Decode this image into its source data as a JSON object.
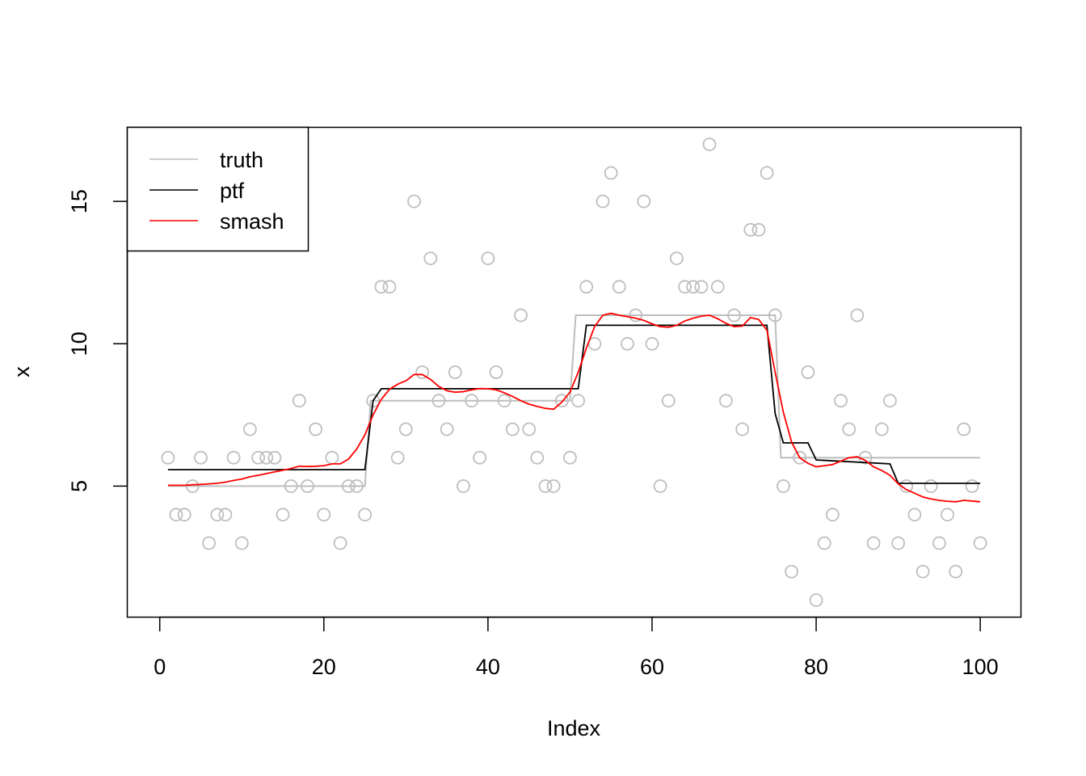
{
  "chart_data": {
    "type": "scatter",
    "title": "",
    "xlabel": "Index",
    "ylabel": "x",
    "xlim": [
      -3.96,
      104.96
    ],
    "ylim": [
      0.4,
      17.6
    ],
    "x_ticks": [
      0,
      20,
      40,
      60,
      80,
      100
    ],
    "y_ticks": [
      5,
      10,
      15
    ],
    "grid": false,
    "legend": {
      "placement": "top-left",
      "entries": [
        {
          "label": "truth",
          "color": "#BEBEBE"
        },
        {
          "label": "ptf",
          "color": "#000000"
        },
        {
          "label": "smash",
          "color": "#FF0000"
        }
      ]
    },
    "points": {
      "name": "x",
      "color": "#BEBEBE",
      "marker": "open-circle",
      "x": [
        1,
        2,
        3,
        4,
        5,
        6,
        7,
        8,
        9,
        10,
        11,
        12,
        13,
        14,
        15,
        16,
        17,
        18,
        19,
        20,
        21,
        22,
        23,
        24,
        25,
        26,
        27,
        28,
        29,
        30,
        31,
        32,
        33,
        34,
        35,
        36,
        37,
        38,
        39,
        40,
        41,
        42,
        43,
        44,
        45,
        46,
        47,
        48,
        49,
        50,
        51,
        52,
        53,
        54,
        55,
        56,
        57,
        58,
        59,
        60,
        61,
        62,
        63,
        64,
        65,
        66,
        67,
        68,
        69,
        70,
        71,
        72,
        73,
        74,
        75,
        76,
        77,
        78,
        79,
        80,
        81,
        82,
        83,
        84,
        85,
        86,
        87,
        88,
        89,
        90,
        91,
        92,
        93,
        94,
        95,
        96,
        97,
        98,
        99,
        100
      ],
      "y": [
        6,
        4,
        4,
        5,
        6,
        3,
        4,
        4,
        6,
        3,
        7,
        6,
        6,
        6,
        4,
        5,
        8,
        5,
        7,
        4,
        6,
        3,
        5,
        5,
        4,
        8,
        12,
        12,
        6,
        7,
        15,
        9,
        13,
        8,
        7,
        9,
        5,
        8,
        6,
        13,
        9,
        8,
        7,
        11,
        7,
        6,
        5,
        5,
        8,
        6,
        8,
        12,
        10,
        15,
        16,
        12,
        10,
        11,
        15,
        10,
        5,
        8,
        13,
        12,
        12,
        12,
        17,
        12,
        8,
        11,
        7,
        14,
        14,
        16,
        11,
        5,
        2,
        6,
        9,
        1,
        3,
        4,
        8,
        7,
        11,
        6,
        3,
        7,
        8,
        3,
        5,
        4,
        2,
        5,
        3,
        4,
        2,
        7,
        5,
        3
      ]
    },
    "series": [
      {
        "name": "truth",
        "color": "#BEBEBE",
        "x": [
          1,
          25,
          25.7,
          50,
          50.7,
          75,
          75.7,
          100
        ],
        "y": [
          5,
          5,
          8,
          8,
          11,
          11,
          6,
          6
        ]
      },
      {
        "name": "ptf",
        "color": "#000000",
        "x": [
          1,
          25,
          26,
          27,
          51,
          52,
          74,
          75,
          76,
          79,
          80,
          89,
          90,
          100
        ],
        "y": [
          5.58,
          5.58,
          8.0,
          8.42,
          8.42,
          10.65,
          10.65,
          7.55,
          6.52,
          6.52,
          5.92,
          5.78,
          5.1,
          5.1
        ],
        "interpolation": "linear"
      },
      {
        "name": "smash",
        "color": "#FF0000",
        "x": [
          1,
          2,
          3,
          4,
          5,
          6,
          7,
          8,
          9,
          10,
          11,
          12,
          13,
          14,
          15,
          16,
          17,
          18,
          19,
          20,
          21,
          22,
          23,
          24,
          25,
          26,
          27,
          28,
          29,
          30,
          31,
          32,
          33,
          34,
          35,
          36,
          37,
          38,
          39,
          40,
          41,
          42,
          43,
          44,
          45,
          46,
          47,
          48,
          49,
          50,
          51,
          52,
          53,
          54,
          55,
          56,
          57,
          58,
          59,
          60,
          61,
          62,
          63,
          64,
          65,
          66,
          67,
          68,
          69,
          70,
          71,
          72,
          73,
          74,
          75,
          76,
          77,
          78,
          79,
          80,
          81,
          82,
          83,
          84,
          85,
          86,
          87,
          88,
          89,
          90,
          91,
          92,
          93,
          94,
          95,
          96,
          97,
          98,
          99,
          100
        ],
        "y": [
          5.03,
          5.03,
          5.03,
          5.05,
          5.06,
          5.08,
          5.1,
          5.14,
          5.2,
          5.25,
          5.33,
          5.38,
          5.44,
          5.5,
          5.56,
          5.62,
          5.7,
          5.69,
          5.7,
          5.72,
          5.78,
          5.78,
          5.95,
          6.3,
          6.8,
          7.5,
          8.05,
          8.4,
          8.58,
          8.7,
          8.92,
          8.92,
          8.75,
          8.5,
          8.35,
          8.3,
          8.32,
          8.38,
          8.43,
          8.42,
          8.38,
          8.28,
          8.15,
          8.0,
          7.88,
          7.8,
          7.73,
          7.7,
          7.95,
          8.3,
          9.0,
          9.85,
          10.6,
          11.0,
          11.07,
          11.0,
          10.95,
          10.9,
          10.82,
          10.7,
          10.6,
          10.58,
          10.65,
          10.8,
          10.9,
          10.97,
          11.0,
          10.88,
          10.72,
          10.6,
          10.62,
          10.92,
          10.85,
          10.48,
          9.0,
          7.6,
          6.55,
          6.0,
          5.8,
          5.68,
          5.72,
          5.76,
          5.88,
          6.0,
          6.03,
          5.9,
          5.68,
          5.55,
          5.38,
          5.08,
          4.88,
          4.75,
          4.62,
          4.55,
          4.5,
          4.47,
          4.45,
          4.5,
          4.48,
          4.45
        ]
      }
    ]
  }
}
